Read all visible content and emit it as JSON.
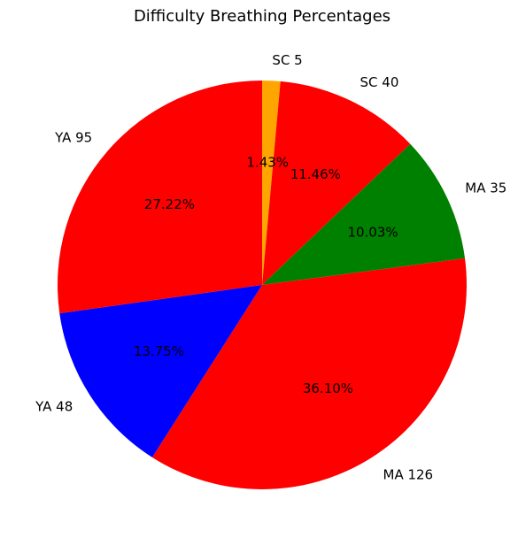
{
  "chart_data": {
    "type": "pie",
    "title": "Difficulty Breathing Percentages",
    "start_angle_deg": 90,
    "direction": "clockwise",
    "slices": [
      {
        "label": "SC 5",
        "value": 5,
        "percent_label": "1.43%",
        "color": "#ffa500"
      },
      {
        "label": "SC 40",
        "value": 40,
        "percent_label": "11.46%",
        "color": "#ff0000"
      },
      {
        "label": "MA 35",
        "value": 35,
        "percent_label": "10.03%",
        "color": "#008000"
      },
      {
        "label": "MA 126",
        "value": 126,
        "percent_label": "36.10%",
        "color": "#ff0000"
      },
      {
        "label": "YA 48",
        "value": 48,
        "percent_label": "13.75%",
        "color": "#0000ff"
      },
      {
        "label": "YA 95",
        "value": 95,
        "percent_label": "27.22%",
        "color": "#ff0000"
      }
    ]
  }
}
